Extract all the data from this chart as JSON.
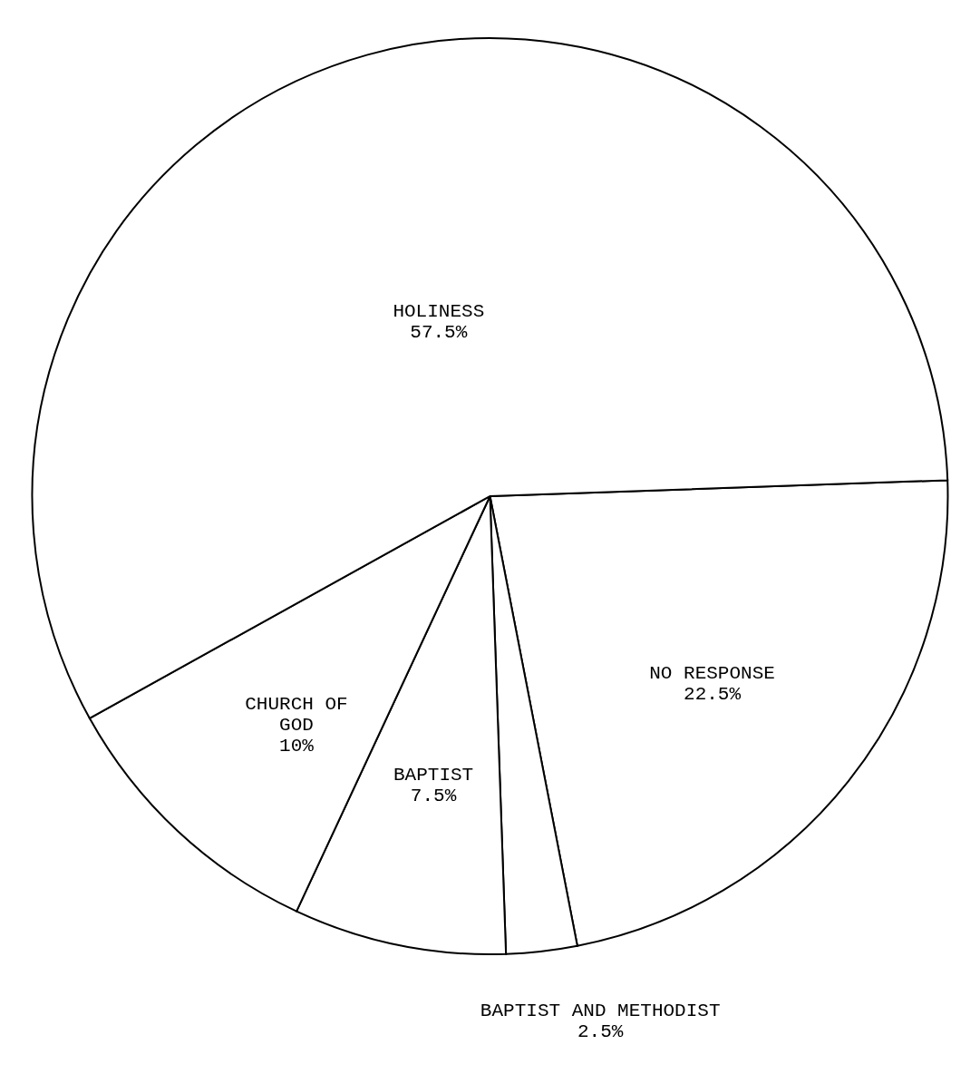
{
  "chart_data": {
    "type": "pie",
    "categories": [
      "NO RESPONSE",
      "BAPTIST AND METHODIST",
      "BAPTIST",
      "CHURCH OF GOD",
      "HOLINESS"
    ],
    "values": [
      22.5,
      2.5,
      7.5,
      10,
      57.5
    ],
    "value_labels": [
      "22.5%",
      "2.5%",
      "7.5%",
      "10%",
      "57.5%"
    ],
    "colors": [
      "#ffffff",
      "#ffffff",
      "#ffffff",
      "#ffffff",
      "#ffffff"
    ]
  }
}
